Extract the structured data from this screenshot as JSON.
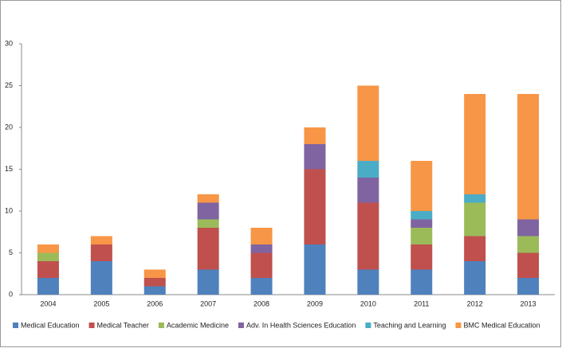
{
  "chart_data": {
    "type": "stacked_bar",
    "categories": [
      "2004",
      "2005",
      "2006",
      "2007",
      "2008",
      "2009",
      "2010",
      "2011",
      "2012",
      "2013"
    ],
    "series": [
      {
        "name": "Medical Education",
        "color": "#4f81bd",
        "values": [
          2,
          4,
          1,
          3,
          2,
          6,
          3,
          3,
          4,
          2
        ]
      },
      {
        "name": "Medical Teacher",
        "color": "#c0504d",
        "values": [
          2,
          2,
          1,
          5,
          3,
          9,
          8,
          3,
          3,
          3
        ]
      },
      {
        "name": "Academic Medicine",
        "color": "#9bbb59",
        "values": [
          1,
          0,
          0,
          1,
          0,
          0,
          0,
          2,
          4,
          2
        ]
      },
      {
        "name": "Adv. In Health Sciences Education",
        "color": "#8064a2",
        "values": [
          0,
          0,
          0,
          2,
          1,
          3,
          3,
          1,
          0,
          2
        ]
      },
      {
        "name": "Teaching and Learning",
        "color": "#4bacc6",
        "values": [
          0,
          0,
          0,
          0,
          0,
          0,
          2,
          1,
          1,
          0
        ]
      },
      {
        "name": "BMC Medical Education",
        "color": "#f79646",
        "values": [
          1,
          1,
          1,
          1,
          2,
          2,
          9,
          6,
          12,
          15
        ]
      }
    ],
    "ylim": [
      0,
      30
    ],
    "yticks": [
      0,
      5,
      10,
      15,
      20,
      25,
      30
    ],
    "grid": false,
    "legend": "bottom"
  }
}
